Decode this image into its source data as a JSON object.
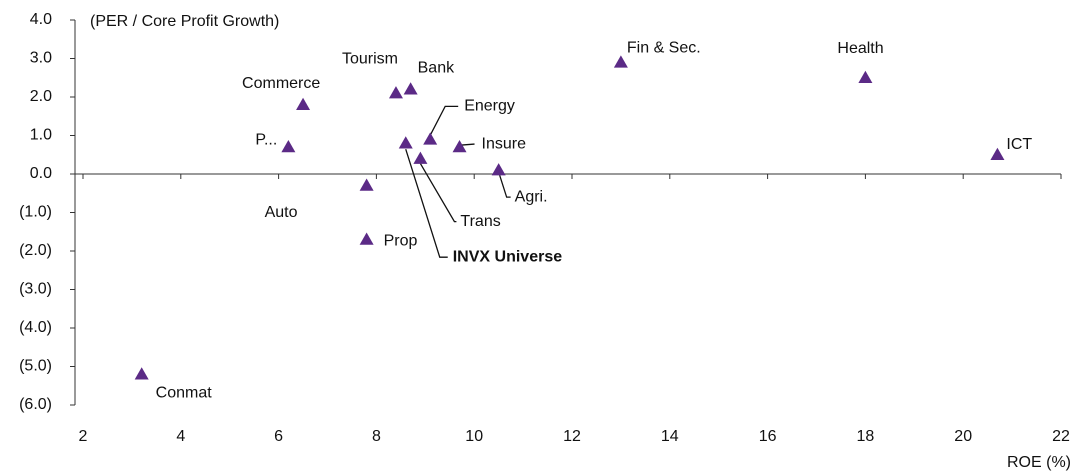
{
  "chart_data": {
    "type": "scatter",
    "ylabel": "(PER / Core Profit Growth)",
    "xlabel": "ROE (%)",
    "color": "#5b2a86",
    "labels": [
      "Conmat",
      "P...",
      "Commerce",
      "Auto",
      "Prop",
      "Tourism",
      "Bank",
      "INVX Universe",
      "Trans",
      "Energy",
      "Insure",
      "Agri.",
      "Fin & Sec.",
      "Health",
      "ICT"
    ],
    "x": [
      3.2,
      6.2,
      6.5,
      7.8,
      7.8,
      8.4,
      8.7,
      8.6,
      8.9,
      9.1,
      9.7,
      10.5,
      13.0,
      18.0,
      20.7
    ],
    "values": [
      -5.2,
      0.7,
      1.8,
      -0.3,
      -1.7,
      2.1,
      2.2,
      0.8,
      0.4,
      0.9,
      0.7,
      0.1,
      2.9,
      2.5,
      0.5
    ],
    "xlim": [
      2,
      22
    ],
    "xticks": [
      2,
      4,
      6,
      8,
      10,
      12,
      14,
      16,
      18,
      20,
      22
    ],
    "ylim": [
      -6,
      4
    ],
    "yticks": [
      {
        "value": 4,
        "label": "4.0"
      },
      {
        "value": 3,
        "label": "3.0"
      },
      {
        "value": 2,
        "label": "2.0"
      },
      {
        "value": 1,
        "label": "1.0"
      },
      {
        "value": 0,
        "label": "0.0"
      },
      {
        "value": -1,
        "label": "(1.0)"
      },
      {
        "value": -2,
        "label": "(2.0)"
      },
      {
        "value": -3,
        "label": "(3.0)"
      },
      {
        "value": -4,
        "label": "(4.0)"
      },
      {
        "value": -5,
        "label": "(5.0)"
      },
      {
        "value": -6,
        "label": "(6.0)"
      }
    ]
  }
}
